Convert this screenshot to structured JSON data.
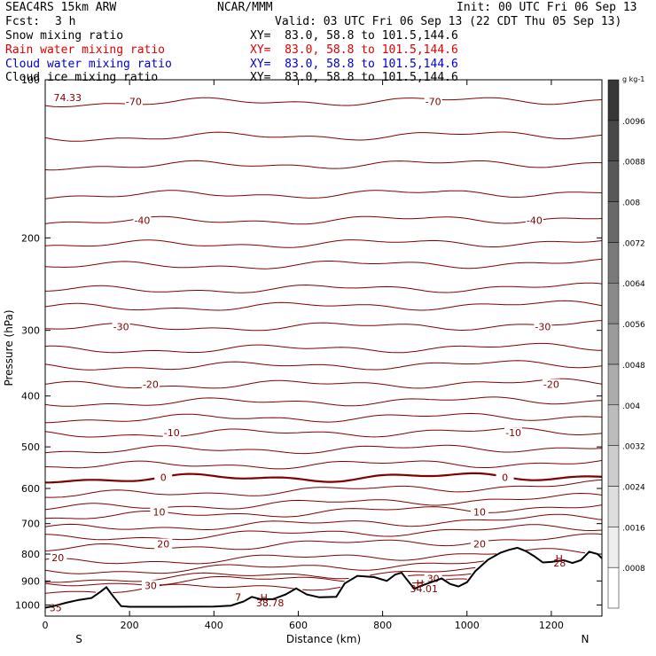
{
  "header": {
    "model": "SEAC4RS 15km ARW",
    "org": "NCAR/MMM",
    "init": "Init: 00 UTC Fri 06 Sep 13",
    "fcst_label": "Fcst:",
    "fcst_value": "3 h",
    "valid": "Valid: 03 UTC Fri 06 Sep 13 (22 CDT Thu 05 Sep 13)"
  },
  "fields": [
    {
      "name": "Snow mixing ratio",
      "xy": "XY=  83.0, 58.8 to 101.5,144.6",
      "color": "#000000"
    },
    {
      "name": "Rain water mixing ratio",
      "xy": "XY=  83.0, 58.8 to 101.5,144.6",
      "color": "#e00000"
    },
    {
      "name": "Cloud water mixing ratio",
      "xy": "XY=  83.0, 58.8 to 101.5,144.6",
      "color": "#0000cc"
    },
    {
      "name": "Cloud ice mixing ratio",
      "xy": "XY=  83.0, 58.8 to 101.5,144.6",
      "color": "#000000"
    }
  ],
  "chart_data": {
    "type": "line",
    "xlabel": "Distance (km)",
    "ylabel": "Pressure (hPa)",
    "xlim": [
      0,
      1320
    ],
    "ylim": [
      1050,
      100
    ],
    "yscale": "log",
    "x_ticks": [
      0,
      200,
      400,
      600,
      800,
      1000,
      1200
    ],
    "y_ticks": [
      100,
      200,
      300,
      400,
      500,
      600,
      700,
      800,
      900,
      1000
    ],
    "y_tick_labels": [
      "100",
      "200",
      "300",
      "400",
      "500",
      "600",
      "700",
      "800",
      "900",
      "1000"
    ],
    "x_end_labels": {
      "left": "S",
      "right": "N"
    },
    "colorbar": {
      "unit": "g kg-1",
      "tick_labels": [
        ".0008",
        ".0016",
        ".0024",
        ".0032",
        ".004",
        ".0048",
        ".0056",
        ".0064",
        ".0072",
        ".008",
        ".0088",
        ".0096"
      ]
    },
    "isotherm_color": "#800000",
    "isotherm_levels": [
      {
        "p": 110,
        "label": "-70",
        "label_x": [
          210,
          920
        ]
      },
      {
        "p": 185,
        "label": "-40",
        "label_x": [
          230,
          1160
        ]
      },
      {
        "p": 295,
        "label": "-30",
        "label_x": [
          180,
          1180
        ]
      },
      {
        "p": 380,
        "label": "-20",
        "label_x": [
          250,
          1200
        ]
      },
      {
        "p": 470,
        "label": "-10",
        "label_x": [
          300,
          1110
        ]
      },
      {
        "p": 572,
        "label": "0",
        "label_x": [
          280,
          1090
        ],
        "bold": true
      },
      {
        "p": 665,
        "label": "10",
        "label_x": [
          270,
          1030
        ]
      },
      {
        "p": 765,
        "label": "20",
        "label_x": [
          280,
          1030
        ]
      },
      {
        "p": 812,
        "label": "20",
        "label_x": [
          30
        ]
      },
      {
        "p": 890,
        "label": "30",
        "label_x": [
          920
        ]
      },
      {
        "p": 918,
        "label": "30",
        "label_x": [
          250
        ]
      }
    ],
    "extra_isotherm_pressures": [
      128,
      145,
      165,
      205,
      225,
      250,
      270,
      325,
      350,
      410,
      440,
      505,
      540,
      605,
      640,
      700,
      730,
      845,
      875
    ],
    "annotations": [
      {
        "text": "74.33",
        "x": 20,
        "p": 108
      },
      {
        "text": "H",
        "x": 510,
        "p": 968
      },
      {
        "text": "38.78",
        "x": 500,
        "p": 990
      },
      {
        "text": "H",
        "x": 880,
        "p": 910
      },
      {
        "text": "34.01",
        "x": 865,
        "p": 930
      },
      {
        "text": "H",
        "x": 1210,
        "p": 815
      },
      {
        "text": "28",
        "x": 1205,
        "p": 832
      },
      {
        "text": "7",
        "x": 450,
        "p": 965
      },
      {
        "text": "35",
        "x": 10,
        "p": 1012
      }
    ],
    "terrain": {
      "x": [
        0,
        20,
        50,
        80,
        110,
        130,
        145,
        160,
        180,
        200,
        300,
        400,
        440,
        470,
        490,
        510,
        540,
        570,
        595,
        620,
        650,
        690,
        710,
        740,
        780,
        810,
        830,
        845,
        860,
        875,
        890,
        915,
        940,
        960,
        980,
        1000,
        1020,
        1050,
        1080,
        1100,
        1120,
        1140,
        1160,
        1180,
        1200,
        1230,
        1250,
        1270,
        1290,
        1310,
        1320
      ],
      "p": [
        1012,
        1005,
        990,
        978,
        970,
        945,
        925,
        960,
        1005,
        1008,
        1008,
        1007,
        1003,
        985,
        965,
        975,
        975,
        955,
        930,
        955,
        967,
        965,
        910,
        880,
        885,
        900,
        875,
        868,
        900,
        932,
        920,
        905,
        890,
        912,
        922,
        905,
        862,
        820,
        795,
        785,
        778,
        790,
        808,
        830,
        828,
        822,
        832,
        822,
        792,
        800,
        815
      ]
    }
  }
}
